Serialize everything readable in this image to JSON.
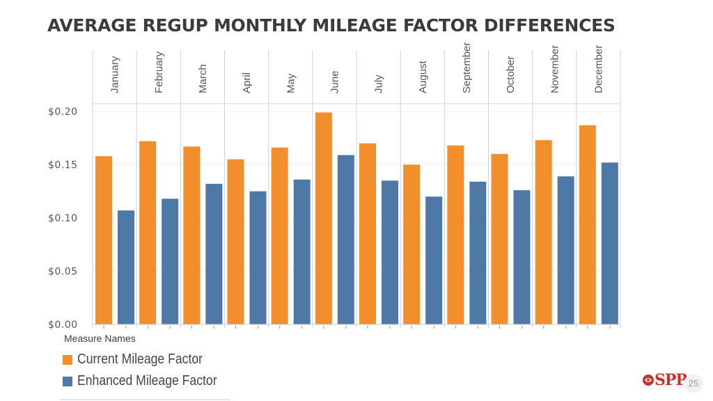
{
  "title": "AVERAGE REGUP MONTHLY MILEAGE FACTOR DIFFERENCES",
  "chart_data": {
    "type": "bar",
    "categories": [
      "January",
      "February",
      "March",
      "April",
      "May",
      "June",
      "July",
      "August",
      "September",
      "October",
      "November",
      "December"
    ],
    "series": [
      {
        "name": "Current Mileage Factor",
        "color": "#f28e2b",
        "values": [
          0.158,
          0.172,
          0.167,
          0.155,
          0.166,
          0.199,
          0.17,
          0.15,
          0.168,
          0.16,
          0.173,
          0.187
        ]
      },
      {
        "name": "Enhanced Mileage Factor",
        "color": "#4e79a7",
        "values": [
          0.107,
          0.118,
          0.132,
          0.125,
          0.136,
          0.159,
          0.135,
          0.12,
          0.134,
          0.126,
          0.139,
          0.152
        ]
      }
    ],
    "ylim": [
      0,
      0.2
    ],
    "yticks": [
      "$0.00",
      "$0.05",
      "$0.10",
      "$0.15",
      "$0.20"
    ],
    "ytick_values": [
      0,
      0.05,
      0.1,
      0.15,
      0.2
    ],
    "xlabel": "",
    "ylabel": "",
    "legend_title": "Measure Names",
    "legend_position": "bottom-left"
  },
  "logo": {
    "text": "SPP",
    "icon": "spp-logo-icon"
  },
  "page_number": "25"
}
